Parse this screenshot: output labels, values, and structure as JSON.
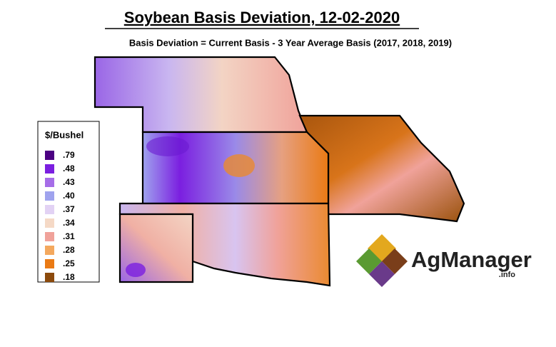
{
  "header": {
    "title": "Soybean Basis Deviation, 12-02-2020",
    "subtitle": "Basis Deviation = Current Basis - 3 Year Average Basis (2017, 2018, 2019)"
  },
  "legend": {
    "title": "$/Bushel",
    "items": [
      {
        "label": ".79",
        "color": "#4b0082"
      },
      {
        "label": ".48",
        "color": "#7b1fe0"
      },
      {
        "label": ".43",
        "color": "#a66de8"
      },
      {
        "label": ".40",
        "color": "#9fa3ee"
      },
      {
        "label": ".37",
        "color": "#e2d2f4"
      },
      {
        "label": ".34",
        "color": "#f5d9c6"
      },
      {
        "label": ".31",
        "color": "#f0a29a"
      },
      {
        "label": ".28",
        "color": "#f4a85e"
      },
      {
        "label": ".25",
        "color": "#ea7a14"
      },
      {
        "label": ".18",
        "color": "#8c4a0c"
      }
    ]
  },
  "logo": {
    "name": "AgManager",
    "suffix": ".info"
  }
}
